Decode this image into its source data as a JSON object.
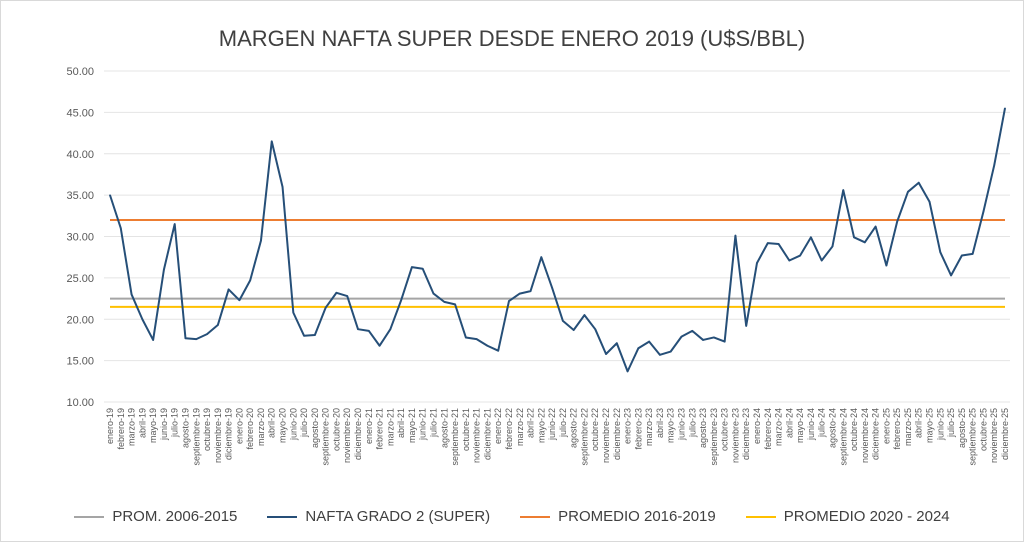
{
  "chart_data": {
    "type": "line",
    "title": "MARGEN NAFTA SUPER DESDE ENERO 2019 (U$S/BBL)",
    "xlabel": "",
    "ylabel": "",
    "ylim": [
      10,
      50
    ],
    "yticks": [
      "10.00",
      "15.00",
      "20.00",
      "25.00",
      "30.00",
      "35.00",
      "40.00",
      "45.00",
      "50.00"
    ],
    "grid": true,
    "legend_position": "bottom",
    "categories": [
      "enero-19",
      "febrero-19",
      "marzo-19",
      "abril-19",
      "mayo-19",
      "junio-19",
      "julio-19",
      "agosto-19",
      "septiembre-19",
      "octubre-19",
      "noviembre-19",
      "diciembre-19",
      "enero-20",
      "febrero-20",
      "marzo-20",
      "abril-20",
      "mayo-20",
      "junio-20",
      "julio-20",
      "agosto-20",
      "septiembre-20",
      "octubre-20",
      "noviembre-20",
      "diciembre-20",
      "enero-21",
      "febrero-21",
      "marzo-21",
      "abril-21",
      "mayo-21",
      "junio-21",
      "julio-21",
      "agosto-21",
      "septiembre-21",
      "octubre-21",
      "noviembre-21",
      "diciembre-21",
      "enero-22",
      "febrero-22",
      "marzo-22",
      "abril-22",
      "mayo-22",
      "junio-22",
      "julio-22",
      "agosto-22",
      "septiembre-22",
      "octubre-22",
      "noviembre-22",
      "diciembre-22",
      "enero-23",
      "febrero-23",
      "marzo-23",
      "abril-23",
      "mayo-23",
      "junio-23",
      "julio-23",
      "agosto-23",
      "septiembre-23",
      "octubre-23",
      "noviembre-23",
      "diciembre-23",
      "enero-24",
      "febrero-24",
      "marzo-24",
      "abril-24",
      "mayo-24",
      "junio-24",
      "julio-24",
      "agosto-24",
      "septiembre-24",
      "octubre-24",
      "noviembre-24",
      "diciembre-24",
      "enero-25",
      "febrero-25",
      "marzo-25",
      "abril-25",
      "mayo-25",
      "junio-25",
      "julio-25",
      "agosto-25",
      "septiembre-25",
      "octubre-25",
      "noviembre-25",
      "diciembre-25"
    ],
    "series": [
      {
        "name": "PROM. 2006-2015",
        "color": "#a5a5a5",
        "constant": 22.5
      },
      {
        "name": "NAFTA GRADO 2 (SUPER)",
        "color": "#264f78",
        "values": [
          35.0,
          31.0,
          23.0,
          20.0,
          17.5,
          26.0,
          31.5,
          17.7,
          17.6,
          18.2,
          19.3,
          23.6,
          22.3,
          24.7,
          29.5,
          41.5,
          36.0,
          20.8,
          18.0,
          18.1,
          21.4,
          23.2,
          22.8,
          18.8,
          18.6,
          16.8,
          18.8,
          22.3,
          26.3,
          26.1,
          23.1,
          22.1,
          21.8,
          17.8,
          17.6,
          16.8,
          16.2,
          22.2,
          23.1,
          23.4,
          27.5,
          23.8,
          19.8,
          18.7,
          20.5,
          18.8,
          15.8,
          17.1,
          13.7,
          16.5,
          17.3,
          15.7,
          16.1,
          17.9,
          18.6,
          17.5,
          17.8,
          17.3,
          30.1,
          19.2,
          26.8,
          29.2,
          29.1,
          27.1,
          27.7,
          29.9,
          27.1,
          28.8,
          35.6,
          29.9,
          29.3,
          31.2,
          26.5,
          31.8,
          35.4,
          36.5,
          34.2,
          28.1,
          25.3,
          27.7,
          27.9,
          33.0,
          38.6,
          45.5
        ]
      },
      {
        "name": "PROMEDIO 2016-2019",
        "color": "#ed7d31",
        "constant": 32.0
      },
      {
        "name": "PROMEDIO 2020 - 2024",
        "color": "#ffc000",
        "constant": 21.5
      }
    ]
  }
}
